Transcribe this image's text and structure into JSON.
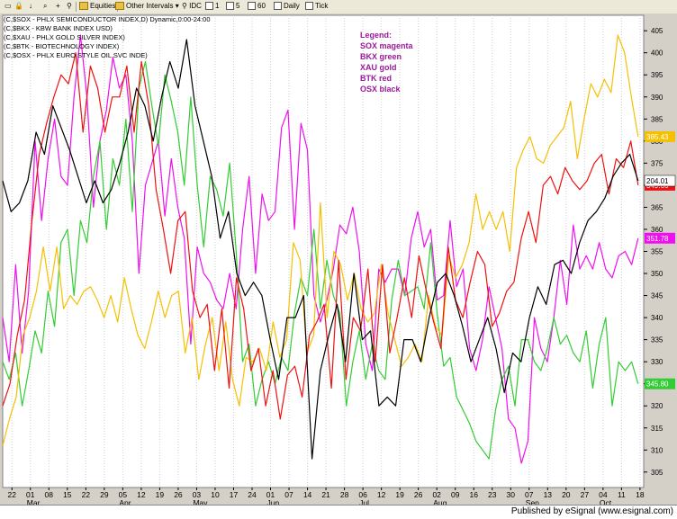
{
  "toolbar": {
    "items": [
      "Equities",
      "Other Intervals",
      "IDC",
      "1",
      "5",
      "60",
      "Daily",
      "Tick"
    ]
  },
  "chart_data": {
    "type": "line",
    "header_lines": [
      "(C,$SOX - PHLX SEMICONDUCTOR INDEX,D) Dynamic,0:00-24:00",
      "(C,$BKX - KBW BANK INDEX USD)",
      "(C,$XAU - PHLX GOLD SILVER INDEX)",
      "(C,$BTK - BIOTECHNOLOGY INDEX)",
      "(C,$OSX - PHLX EURO STYLE OIL SVC INDE)"
    ],
    "legend_lines": [
      "Legend:",
      "SOX magenta",
      "BKX green",
      "XAU gold",
      "BTK red",
      "OSX black"
    ],
    "y_ticks": [
      305,
      310,
      315,
      320,
      325,
      330,
      335,
      340,
      345,
      350,
      355,
      360,
      365,
      370,
      375,
      380,
      385,
      390,
      395,
      400,
      405
    ],
    "ylim": [
      301.5,
      408.5
    ],
    "x_day_labels": [
      "22",
      "01",
      "08",
      "15",
      "22",
      "29",
      "05",
      "12",
      "19",
      "26",
      "03",
      "10",
      "17",
      "24",
      "01",
      "07",
      "14",
      "21",
      "28",
      "06",
      "12",
      "19",
      "26",
      "02",
      "09",
      "16",
      "23",
      "30",
      "07",
      "13",
      "20",
      "27",
      "04",
      "11",
      "18"
    ],
    "x_month_labels": [
      {
        "label": "Mar",
        "at": 1
      },
      {
        "label": "Apr",
        "at": 6
      },
      {
        "label": "May",
        "at": 10
      },
      {
        "label": "Jun",
        "at": 14
      },
      {
        "label": "Jul",
        "at": 19
      },
      {
        "label": "Aug",
        "at": 23
      },
      {
        "label": "Sep",
        "at": 28
      },
      {
        "label": "Oct",
        "at": 32
      }
    ],
    "xlim": [
      0,
      34.7
    ],
    "series": [
      {
        "name": "SOX",
        "color": "#ee10ee",
        "last_label": "351.78",
        "values": [
          340,
          330,
          352,
          332,
          346,
          380,
          362,
          376,
          385,
          372,
          370,
          390,
          404,
          390,
          365,
          380,
          387,
          399,
          392,
          395,
          380,
          350,
          370,
          375,
          380,
          363,
          376,
          365,
          358,
          334,
          356,
          350,
          348,
          344,
          342,
          350,
          342,
          360,
          372,
          350,
          368,
          362,
          364,
          383,
          387,
          360,
          384,
          378,
          345,
          339,
          344,
          351,
          361,
          359,
          365,
          355,
          334,
          328,
          351,
          348,
          351,
          351,
          345,
          358,
          364,
          356,
          360,
          344,
          345,
          362,
          347,
          351,
          333,
          328,
          335,
          347,
          340,
          333,
          317,
          315,
          307,
          312,
          340,
          333,
          330,
          340,
          353,
          343,
          361,
          351,
          354,
          351,
          357,
          351,
          349,
          354,
          355,
          352,
          358
        ]
      },
      {
        "name": "BKX",
        "color": "#33cc33",
        "last_label": "345.80",
        "values": [
          330,
          326,
          332,
          320,
          328,
          337,
          332,
          346,
          338,
          357,
          360,
          345,
          362,
          357,
          372,
          380,
          360,
          376,
          370,
          385,
          364,
          392,
          398,
          388,
          379,
          395,
          389,
          382,
          370,
          390,
          370,
          356,
          372,
          369,
          363,
          375,
          355,
          330,
          334,
          320,
          326,
          330,
          325,
          331,
          328,
          341,
          349,
          345,
          360,
          342,
          353,
          345,
          341,
          320,
          330,
          337,
          326,
          334,
          328,
          326,
          344,
          353,
          345,
          346,
          347,
          342,
          357,
          341,
          329,
          331,
          322,
          319,
          316,
          312,
          310,
          308,
          319,
          326,
          329,
          320,
          335,
          335,
          330,
          328,
          333,
          340,
          334,
          336,
          332,
          330,
          337,
          324,
          334,
          340,
          320,
          330,
          328,
          330,
          325
        ]
      },
      {
        "name": "XAU",
        "color": "#f5c000",
        "last_label": "385.43",
        "values": [
          311,
          317,
          322,
          336,
          340,
          346,
          356,
          346,
          356,
          342,
          345,
          343,
          346,
          347,
          344,
          340,
          345,
          339,
          349,
          342,
          336,
          333,
          339,
          346,
          340,
          345,
          346,
          332,
          340,
          326,
          334,
          340,
          328,
          339,
          326,
          320,
          331,
          330,
          333,
          328,
          339,
          331,
          335,
          357,
          353,
          332,
          336,
          366,
          340,
          355,
          352,
          344,
          350,
          342,
          339,
          341,
          352,
          341,
          335,
          329,
          331,
          334,
          330,
          345,
          338,
          336,
          354,
          349,
          352,
          357,
          368,
          360,
          364,
          360,
          364,
          355,
          374,
          378,
          381,
          376,
          375,
          379,
          381,
          383,
          389,
          376,
          385,
          393,
          390,
          394,
          391,
          404,
          400,
          390,
          381
        ]
      },
      {
        "name": "BTK",
        "color": "#ee1111",
        "last_label": "349.66",
        "values": [
          320,
          325,
          336,
          344,
          362,
          377,
          384,
          390,
          395,
          393,
          400,
          382,
          397,
          392,
          382,
          390,
          390,
          397,
          382,
          398,
          388,
          369,
          360,
          350,
          362,
          364,
          346,
          340,
          343,
          328,
          342,
          324,
          349,
          342,
          328,
          333,
          320,
          328,
          317,
          327,
          329,
          322,
          336,
          339,
          343,
          324,
          353,
          326,
          340,
          337,
          351,
          330,
          352,
          332,
          340,
          349,
          340,
          354,
          346,
          339,
          333,
          356,
          344,
          340,
          348,
          355,
          352,
          338,
          341,
          346,
          348,
          358,
          364,
          357,
          370,
          372,
          368,
          374,
          371,
          369,
          371,
          375,
          377,
          368,
          376,
          374,
          380,
          370
        ]
      },
      {
        "name": "OSX",
        "color": "#000000",
        "last_label": "204.01",
        "values": [
          371,
          364,
          366,
          371,
          382,
          377,
          388,
          383,
          378,
          372,
          366,
          371,
          366,
          369,
          375,
          382,
          392,
          388,
          380,
          390,
          398,
          392,
          403,
          388,
          380,
          372,
          358,
          364,
          350,
          345,
          348,
          345,
          335,
          326,
          340,
          340,
          345,
          308,
          328,
          336,
          343,
          330,
          350,
          335,
          337,
          320,
          322,
          320,
          335,
          335,
          330,
          340,
          348,
          350,
          345,
          338,
          330,
          335,
          340,
          333,
          323,
          332,
          330,
          340,
          347,
          343,
          352,
          353,
          350,
          357,
          362,
          364,
          367,
          372,
          375,
          377,
          371
        ]
      }
    ]
  },
  "footer": {
    "text": "Published by eSignal (www.esignal.com)"
  }
}
